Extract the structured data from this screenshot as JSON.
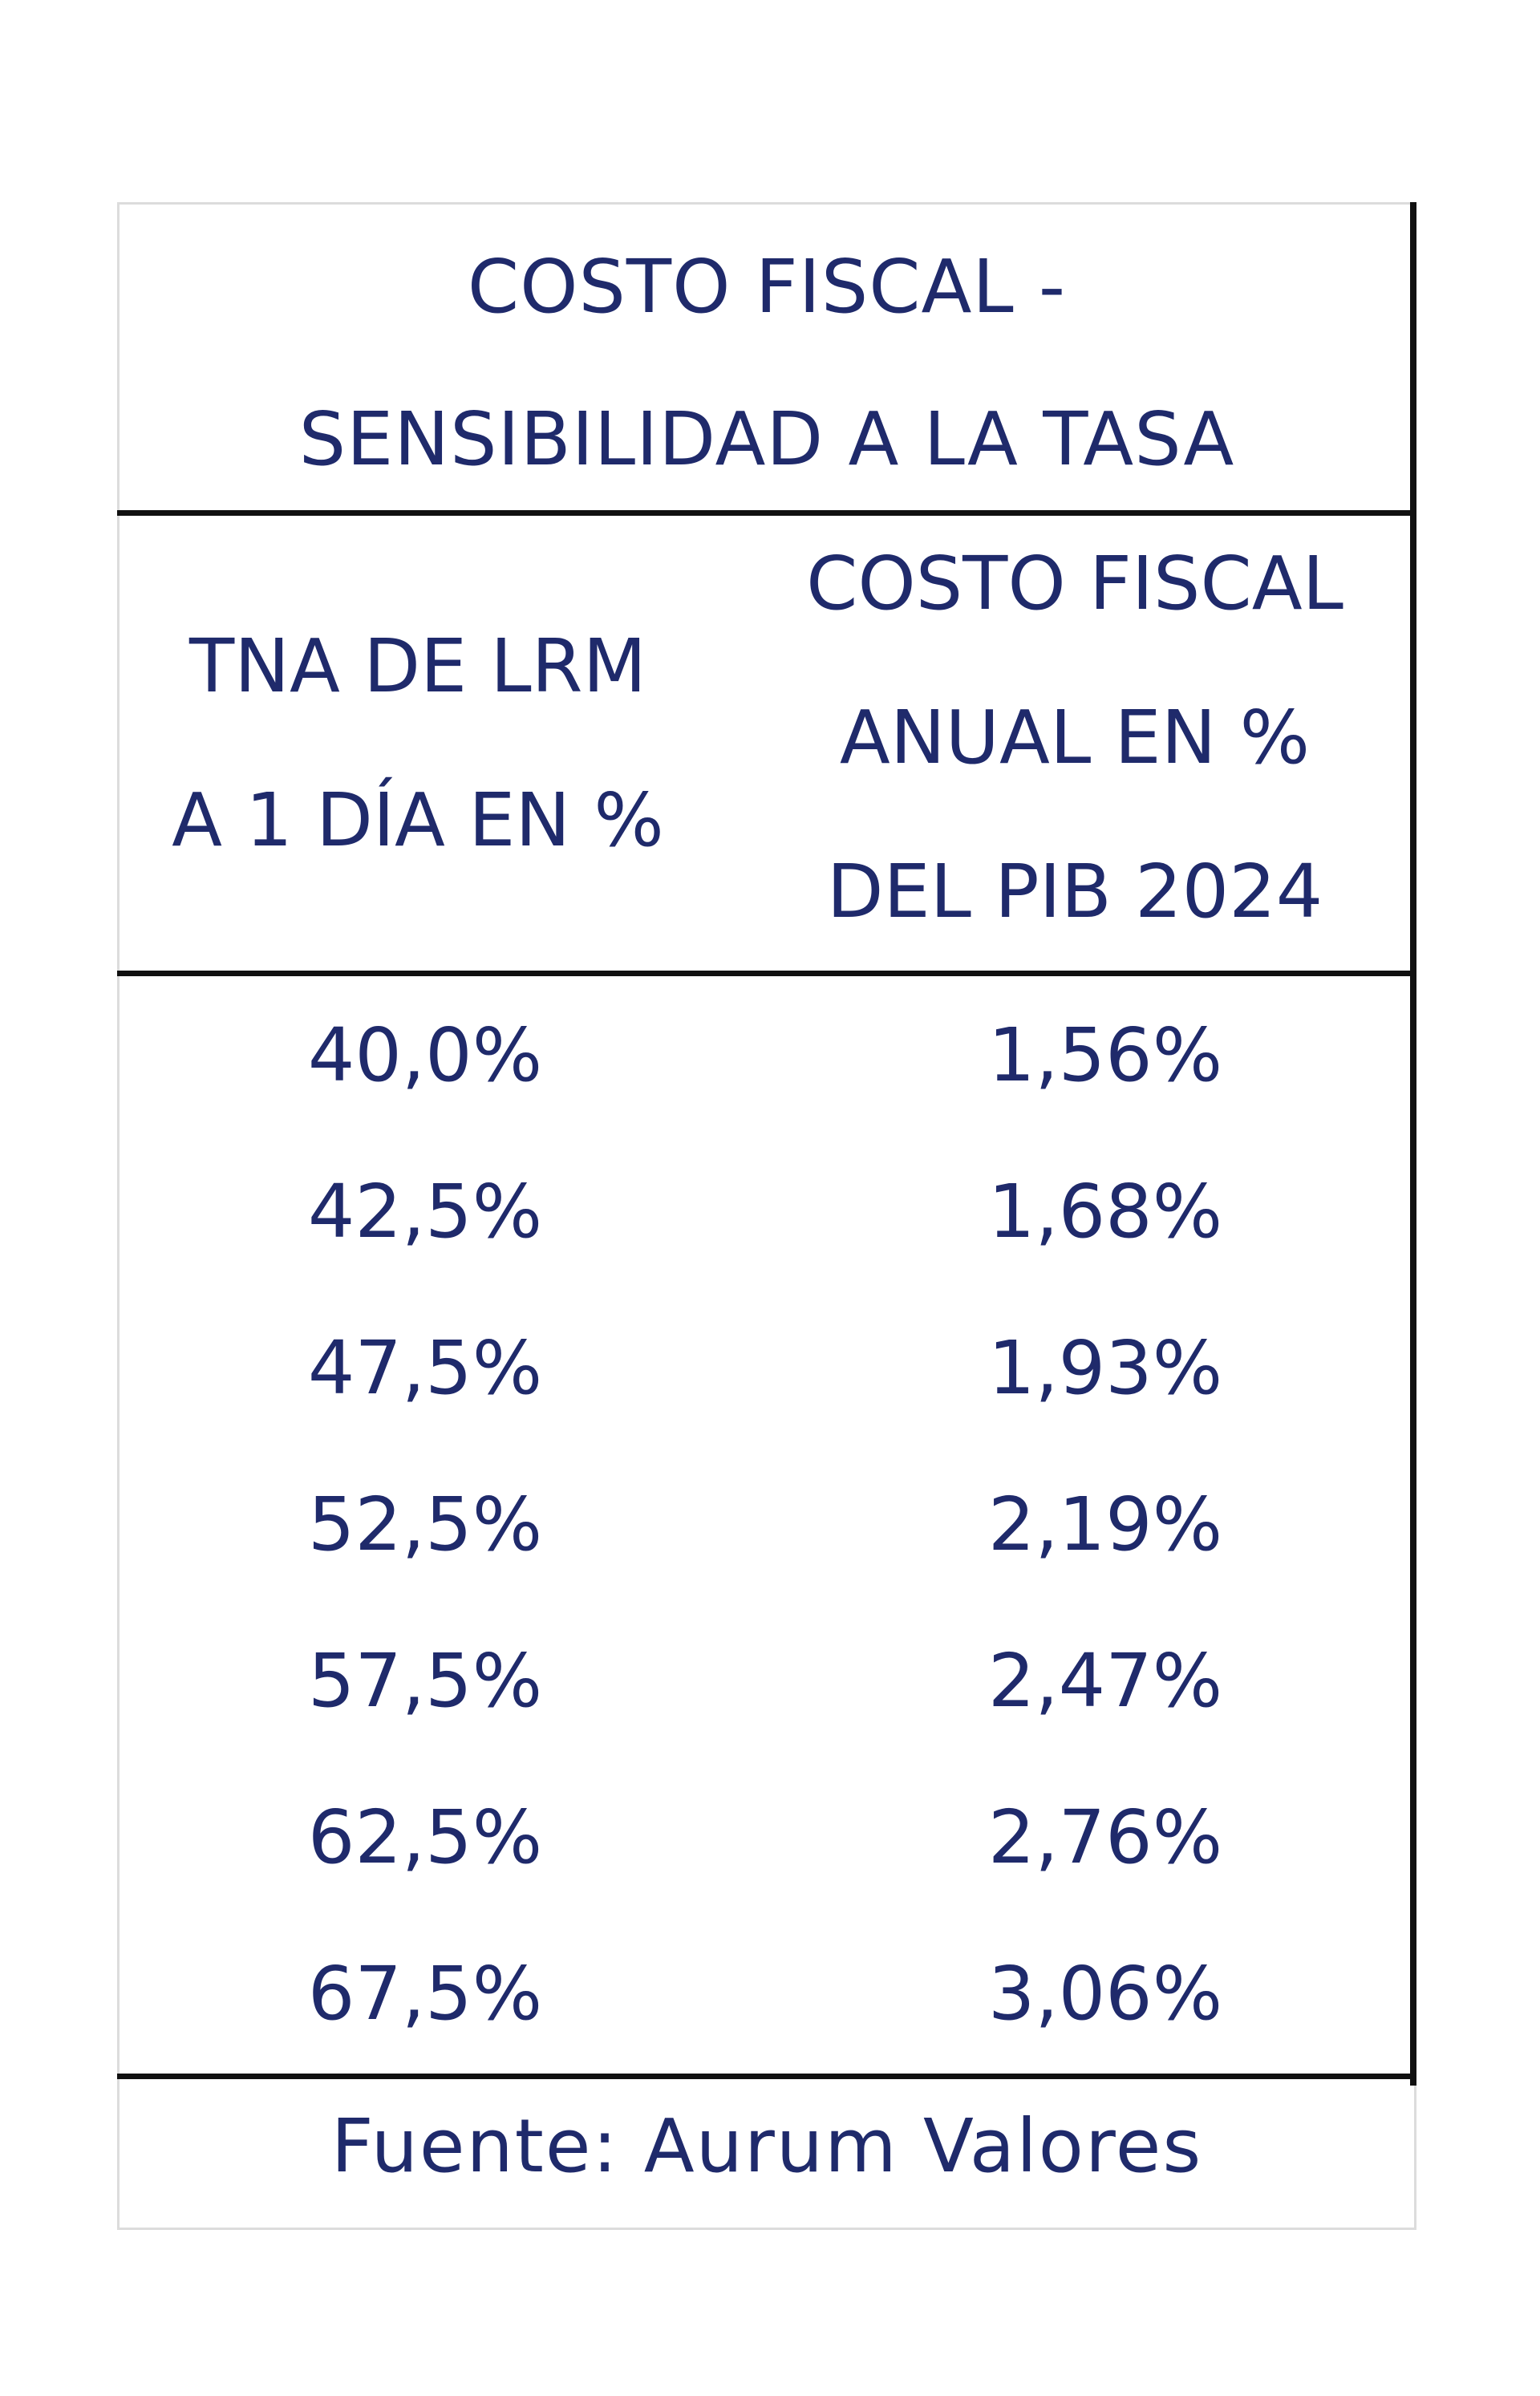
{
  "title": {
    "line1": "COSTO FISCAL -",
    "line2": "SENSIBILIDAD A LA TASA"
  },
  "headers": {
    "left": [
      "TNA DE LRM",
      "A 1 DÍA EN %"
    ],
    "right": [
      "COSTO FISCAL",
      "ANUAL EN %",
      "DEL PIB 2024"
    ]
  },
  "chart_data": {
    "type": "table",
    "title": "COSTO FISCAL - SENSIBILIDAD A LA TASA",
    "columns": [
      "TNA DE LRM A 1 DÍA EN %",
      "COSTO FISCAL ANUAL EN % DEL PIB 2024"
    ],
    "rows": [
      [
        "40,0%",
        "1,56%"
      ],
      [
        "42,5%",
        "1,68%"
      ],
      [
        "47,5%",
        "1,93%"
      ],
      [
        "52,5%",
        "2,19%"
      ],
      [
        "57,5%",
        "2,47%"
      ],
      [
        "62,5%",
        "2,76%"
      ],
      [
        "67,5%",
        "3,06%"
      ]
    ]
  },
  "source": "Fuente: Aurum Valores",
  "colors": {
    "text": "#1f2a6b",
    "rule": "#111111",
    "border": "#dcdcdc",
    "background": "#ffffff"
  }
}
